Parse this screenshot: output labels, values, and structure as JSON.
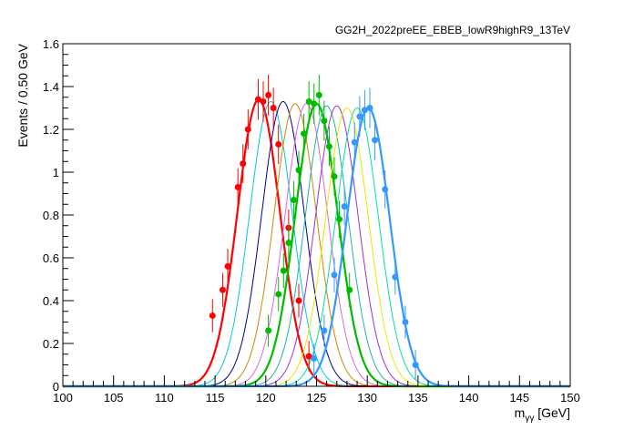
{
  "chart_data": {
    "type": "line",
    "title": "GG2H_2022preEE_EBEB_lowR9highR9_13TeV",
    "xlabel": "m_{γγ} [GeV]",
    "xlabel_main": "m",
    "xlabel_sub": "γγ",
    "xlabel_unit": " [GeV]",
    "ylabel": "Events / 0.50 GeV",
    "xlim": [
      100,
      150
    ],
    "ylim": [
      0,
      1.6
    ],
    "x_ticks": [
      100,
      105,
      110,
      115,
      120,
      125,
      130,
      135,
      140,
      145,
      150
    ],
    "x_tick_labels": [
      "100",
      "105",
      "110",
      "115",
      "120",
      "125",
      "130",
      "135",
      "140",
      "145",
      "150"
    ],
    "y_ticks": [
      0,
      0.2,
      0.4,
      0.6,
      0.8,
      1.0,
      1.2,
      1.4,
      1.6
    ],
    "y_tick_labels": [
      "0",
      "0.2",
      "0.4",
      "0.6",
      "0.8",
      "1",
      "1.2",
      "1.4",
      "1.6"
    ],
    "grid": false,
    "legend": "none",
    "signal_curves": [
      {
        "color": "#ff0000",
        "mean": 119.3,
        "width": 2.1,
        "peak": 1.34,
        "bold": true
      },
      {
        "color": "#00cccc",
        "mean": 120.5,
        "width": 2.1,
        "peak": 1.33,
        "bold": false
      },
      {
        "color": "#00008b",
        "mean": 121.7,
        "width": 2.1,
        "peak": 1.33,
        "bold": false
      },
      {
        "color": "#cc8800",
        "mean": 122.9,
        "width": 2.1,
        "peak": 1.32,
        "bold": false
      },
      {
        "color": "#dd66dd",
        "mean": 124.0,
        "width": 2.1,
        "peak": 1.32,
        "bold": false
      },
      {
        "color": "#00bb00",
        "mean": 125.0,
        "width": 2.1,
        "peak": 1.32,
        "bold": true
      },
      {
        "color": "#20b2aa",
        "mean": 126.0,
        "width": 2.1,
        "peak": 1.31,
        "bold": false
      },
      {
        "color": "#9933cc",
        "mean": 127.0,
        "width": 2.1,
        "peak": 1.31,
        "bold": false
      },
      {
        "color": "#e8e800",
        "mean": 128.0,
        "width": 2.1,
        "peak": 1.3,
        "bold": false
      },
      {
        "color": "#00e0a0",
        "mean": 129.0,
        "width": 2.1,
        "peak": 1.3,
        "bold": false
      },
      {
        "color": "#3399ff",
        "mean": 130.1,
        "width": 2.1,
        "peak": 1.3,
        "bold": true
      }
    ],
    "data_series": [
      {
        "color": "#ff0000",
        "x": [
          114.75,
          115.75,
          116.25,
          117.25,
          117.75,
          118.25,
          119.25,
          119.75,
          120.25,
          121.25,
          122.25,
          123.25,
          124.25,
          120.75
        ],
        "y": [
          0.33,
          0.45,
          0.56,
          0.93,
          1.04,
          1.2,
          1.34,
          1.33,
          1.36,
          1.13,
          0.74,
          0.4,
          0.14,
          1.3
        ]
      },
      {
        "color": "#00bb00",
        "x": [
          120.25,
          121.25,
          121.75,
          122.25,
          122.75,
          123.25,
          123.75,
          124.25,
          124.75,
          125.25,
          125.75,
          126.25,
          126.75,
          127.25,
          128.25
        ],
        "y": [
          0.26,
          0.43,
          0.54,
          0.67,
          0.87,
          1.01,
          1.18,
          1.33,
          1.32,
          1.36,
          1.24,
          1.12,
          0.98,
          0.78,
          0.45
        ]
      },
      {
        "color": "#3399ff",
        "x": [
          124.75,
          125.75,
          126.75,
          127.75,
          128.75,
          129.25,
          129.75,
          130.25,
          130.75,
          131.75,
          132.75,
          133.75,
          134.75
        ],
        "y": [
          0.13,
          0.26,
          0.52,
          0.84,
          1.14,
          1.26,
          1.29,
          1.3,
          1.15,
          0.92,
          0.51,
          0.3,
          0.1
        ]
      }
    ]
  }
}
